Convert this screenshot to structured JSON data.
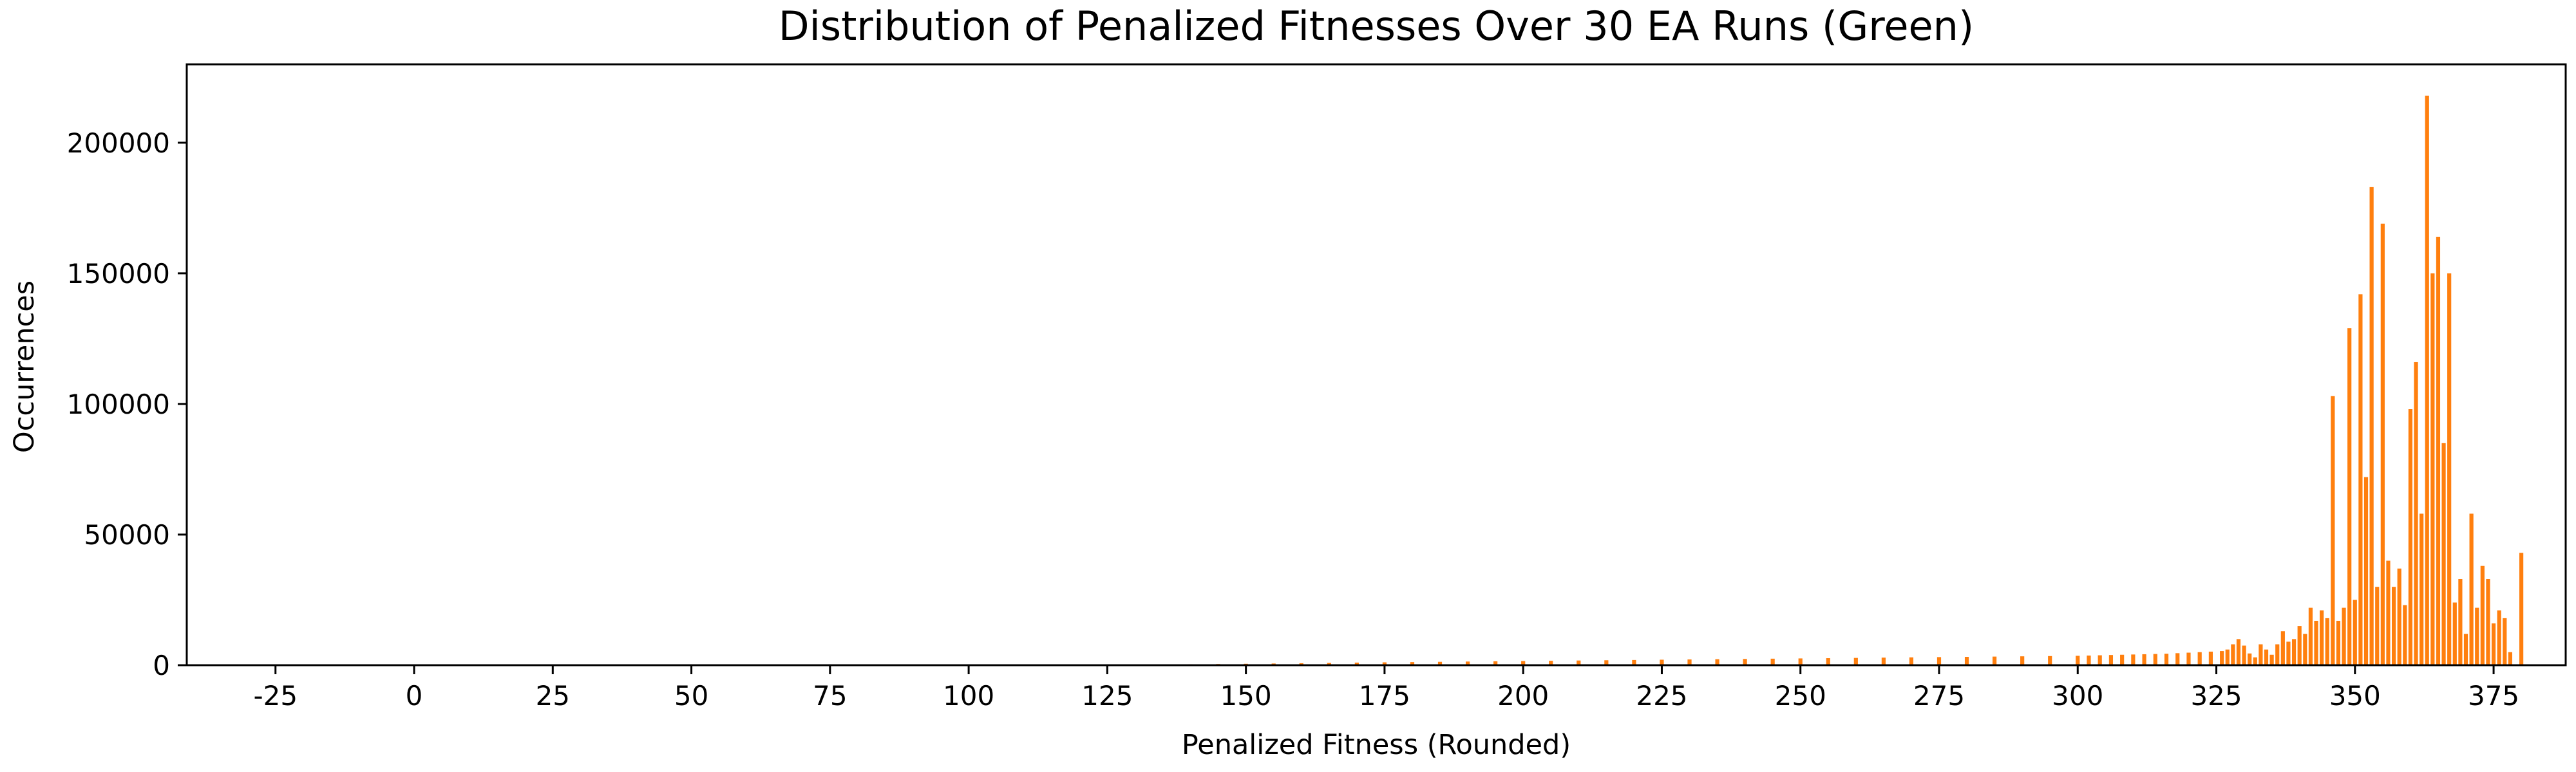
{
  "chart_data": {
    "type": "bar",
    "title": "Distribution of Penalized Fitnesses Over 30 EA Runs (Green)",
    "xlabel": "Penalized Fitness (Rounded)",
    "ylabel": "Occurrences",
    "xlim": [
      -41,
      388
    ],
    "ylim": [
      0,
      230000
    ],
    "xticks": [
      "-25",
      "0",
      "25",
      "50",
      "75",
      "100",
      "125",
      "150",
      "175",
      "200",
      "225",
      "250",
      "275",
      "300",
      "325",
      "350",
      "375"
    ],
    "yticks": [
      "0",
      "50000",
      "100000",
      "150000",
      "200000"
    ],
    "bar_color": "#ff7f0e",
    "grid": false,
    "legend": "none",
    "x": [
      100,
      105,
      110,
      115,
      120,
      125,
      130,
      135,
      140,
      145,
      150,
      155,
      160,
      165,
      170,
      175,
      180,
      185,
      190,
      195,
      200,
      205,
      210,
      215,
      220,
      225,
      230,
      235,
      240,
      245,
      250,
      255,
      260,
      265,
      270,
      275,
      280,
      285,
      290,
      295,
      300,
      302,
      304,
      306,
      308,
      310,
      312,
      314,
      316,
      318,
      320,
      322,
      324,
      326,
      327,
      328,
      329,
      330,
      331,
      332,
      333,
      334,
      335,
      336,
      337,
      338,
      339,
      340,
      341,
      342,
      343,
      344,
      345,
      346,
      347,
      348,
      349,
      350,
      351,
      352,
      353,
      354,
      355,
      356,
      357,
      358,
      359,
      360,
      361,
      362,
      363,
      364,
      365,
      366,
      367,
      368,
      369,
      370,
      371,
      372,
      373,
      374,
      375,
      376,
      377,
      378,
      379,
      380
    ],
    "values": [
      60,
      80,
      100,
      130,
      160,
      200,
      250,
      300,
      380,
      450,
      550,
      650,
      760,
      880,
      1000,
      1100,
      1200,
      1300,
      1400,
      1500,
      1600,
      1700,
      1800,
      1900,
      2000,
      2100,
      2200,
      2300,
      2400,
      2500,
      2600,
      2700,
      2800,
      2900,
      3000,
      3100,
      3200,
      3300,
      3400,
      3500,
      3600,
      3700,
      3800,
      3900,
      4000,
      4100,
      4200,
      4300,
      4400,
      4600,
      4800,
      5000,
      5200,
      5400,
      6000,
      8000,
      10000,
      7500,
      4500,
      3000,
      8000,
      6000,
      4000,
      8000,
      13000,
      9000,
      10000,
      15000,
      12000,
      22000,
      17000,
      21000,
      18000,
      103000,
      17000,
      22000,
      129000,
      25000,
      142000,
      72000,
      183000,
      30000,
      169000,
      40000,
      30000,
      37000,
      23000,
      98000,
      116000,
      58000,
      218000,
      150000,
      164000,
      85000,
      150000,
      24000,
      33000,
      12000,
      58000,
      22000,
      38000,
      33000,
      16000,
      21000,
      18000,
      5000,
      0,
      43000
    ]
  }
}
